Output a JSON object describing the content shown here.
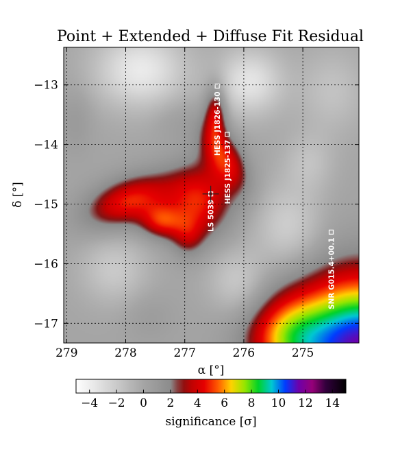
{
  "chart_data": {
    "type": "heatmap",
    "title": "Point + Extended + Diffuse Fit Residual",
    "xlabel": "α [°]",
    "ylabel": "δ [°]",
    "xlim": [
      279.05,
      274.05
    ],
    "ylim": [
      -17.33,
      -12.37
    ],
    "x_ticks": [
      279,
      278,
      277,
      276,
      275
    ],
    "x_tick_labels": [
      "279",
      "278",
      "277",
      "276",
      "275"
    ],
    "y_ticks": [
      -13,
      -14,
      -15,
      -16,
      -17
    ],
    "y_tick_labels": [
      "−13",
      "−14",
      "−15",
      "−16",
      "−17"
    ],
    "grid": true,
    "colorbar": {
      "label": "significance [σ]",
      "orientation": "horizontal",
      "position": "bottom",
      "range": [
        -5,
        15
      ],
      "ticks": [
        -4,
        -2,
        0,
        2,
        4,
        6,
        8,
        10,
        12,
        14
      ],
      "tick_labels": [
        "−4",
        "−2",
        "0",
        "2",
        "4",
        "6",
        "8",
        "10",
        "12",
        "14"
      ]
    },
    "blobs": [
      {
        "ra": 276.48,
        "dec": -13.45,
        "sigma_ra": 0.13,
        "sigma_dec": 0.35,
        "angle": 0,
        "amp": 4.0
      },
      {
        "ra": 276.35,
        "dec": -14.2,
        "sigma_ra": 0.22,
        "sigma_dec": 0.45,
        "angle": 30,
        "amp": 4.2
      },
      {
        "ra": 276.75,
        "dec": -14.95,
        "sigma_ra": 0.4,
        "sigma_dec": 0.45,
        "angle": 0,
        "amp": 4.6
      },
      {
        "ra": 277.95,
        "dec": -14.95,
        "sigma_ra": 0.55,
        "sigma_dec": 0.28,
        "angle": 20,
        "amp": 4.8
      },
      {
        "ra": 277.4,
        "dec": -15.3,
        "sigma_ra": 0.25,
        "sigma_dec": 0.2,
        "angle": 0,
        "amp": 3.6
      },
      {
        "ra": 276.95,
        "dec": -15.55,
        "sigma_ra": 0.2,
        "sigma_dec": 0.25,
        "angle": 0,
        "amp": 2.2
      },
      {
        "ra": 274.0,
        "dec": -17.4,
        "sigma_ra": 0.95,
        "sigma_dec": 0.85,
        "angle": 0,
        "amp": 11.5
      },
      {
        "ra": 275.3,
        "dec": -17.2,
        "sigma_ra": 0.45,
        "sigma_dec": 0.45,
        "angle": 0,
        "amp": 3.3
      },
      {
        "ra": 277.75,
        "dec": -12.75,
        "sigma_ra": 0.55,
        "sigma_dec": 0.45,
        "angle": 0,
        "amp": -3.8
      },
      {
        "ra": 275.9,
        "dec": -12.95,
        "sigma_ra": 0.4,
        "sigma_dec": 0.4,
        "angle": 0,
        "amp": -3.5
      },
      {
        "ra": 278.2,
        "dec": -16.1,
        "sigma_ra": 0.4,
        "sigma_dec": 0.4,
        "angle": 0,
        "amp": -2.0
      },
      {
        "ra": 276.1,
        "dec": -16.3,
        "sigma_ra": 0.35,
        "sigma_dec": 0.4,
        "angle": 0,
        "amp": -2.2
      },
      {
        "ra": 275.25,
        "dec": -15.4,
        "sigma_ra": 0.4,
        "sigma_dec": 0.5,
        "angle": 0,
        "amp": -2.4
      },
      {
        "ra": 274.5,
        "dec": -13.1,
        "sigma_ra": 0.4,
        "sigma_dec": 0.5,
        "angle": 0,
        "amp": -1.6
      },
      {
        "ra": 274.9,
        "dec": -14.3,
        "sigma_ra": 0.3,
        "sigma_dec": 0.35,
        "angle": 0,
        "amp": -1.5
      },
      {
        "ra": 278.85,
        "dec": -13.6,
        "sigma_ra": 0.2,
        "sigma_dec": 0.4,
        "angle": 0,
        "amp": 0.9
      },
      {
        "ra": 277.2,
        "dec": -13.6,
        "sigma_ra": 0.25,
        "sigma_dec": 0.25,
        "angle": 0,
        "amp": 0.6
      },
      {
        "ra": 277.6,
        "dec": -16.9,
        "sigma_ra": 0.3,
        "sigma_dec": 0.3,
        "angle": 0,
        "amp": 0.7
      }
    ],
    "sources": [
      {
        "name": "HESS J1826-130",
        "ra": 276.45,
        "dec": -13.02
      },
      {
        "name": "HESS J1825-137",
        "ra": 276.28,
        "dec": -13.83
      },
      {
        "name": "LS 5039",
        "ra": 276.56,
        "dec": -14.83
      },
      {
        "name": "SNR G015.4+00.1",
        "ra": 274.52,
        "dec": -15.47
      }
    ]
  }
}
